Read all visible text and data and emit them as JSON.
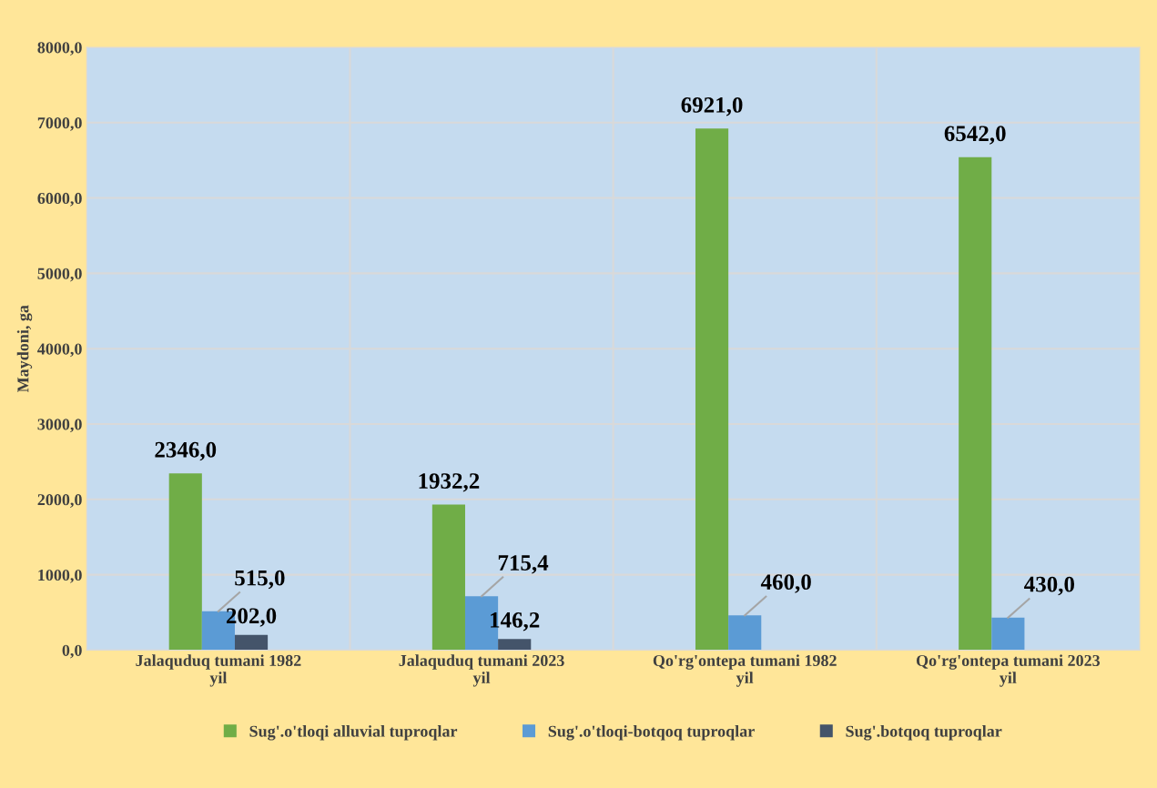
{
  "chart_data": {
    "type": "bar",
    "ylabel": "Maydoni, ga",
    "categories": [
      "Jalaquduq tumani 1982 yil",
      "Jalaquduq tumani 2023 yil",
      "Qo'rg'ontepa tumani 1982 yil",
      "Qo'rg'ontepa tumani 2023 yil"
    ],
    "series": [
      {
        "name": "Sug'.o'tloqi alluvial tuproqlar",
        "color": "#70ad47",
        "values": [
          2346.0,
          1932.2,
          6921.0,
          6542.0
        ],
        "value_labels": [
          "2346,0",
          "1932,2",
          "6921,0",
          "6542,0"
        ]
      },
      {
        "name": "Sug'.o'tloqi-botqoq tuproqlar",
        "color": "#5b9bd5",
        "values": [
          515.0,
          715.4,
          460.0,
          430.0
        ],
        "value_labels": [
          "515,0",
          "715,4",
          "460,0",
          "430,0"
        ]
      },
      {
        "name": "Sug'.botqoq tuproqlar",
        "color": "#44546a",
        "values": [
          202.0,
          146.2,
          null,
          null
        ],
        "value_labels": [
          "202,0",
          "146,2",
          null,
          null
        ]
      }
    ],
    "ylim": [
      0,
      8000
    ],
    "yticks": [
      {
        "value": 0,
        "label": "0,0"
      },
      {
        "value": 1000,
        "label": "1000,0"
      },
      {
        "value": 2000,
        "label": "2000,0"
      },
      {
        "value": 3000,
        "label": "3000,0"
      },
      {
        "value": 4000,
        "label": "4000,0"
      },
      {
        "value": 5000,
        "label": "5000,0"
      },
      {
        "value": 6000,
        "label": "6000,0"
      },
      {
        "value": 7000,
        "label": "7000,0"
      },
      {
        "value": 8000,
        "label": "8000,0"
      }
    ],
    "grid": "y",
    "legend": "bottom"
  }
}
